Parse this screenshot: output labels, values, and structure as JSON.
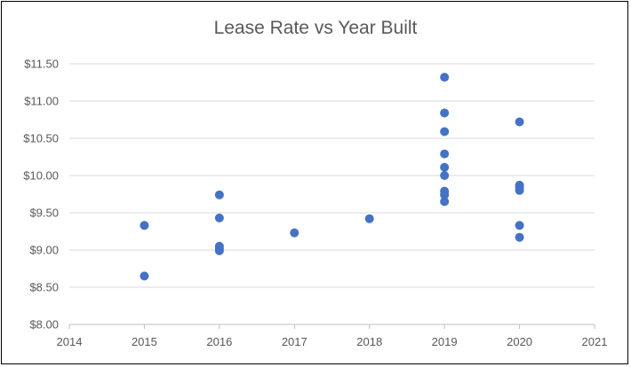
{
  "chart_data": {
    "type": "scatter",
    "title": "Lease Rate vs Year Built",
    "xlabel": "",
    "ylabel": "",
    "xlim": [
      2014,
      2021
    ],
    "ylim": [
      8.0,
      11.5
    ],
    "x_ticks": [
      "2014",
      "2015",
      "2016",
      "2017",
      "2018",
      "2019",
      "2020",
      "2021"
    ],
    "y_ticks": [
      "$8.00",
      "$8.50",
      "$9.00",
      "$9.50",
      "$10.00",
      "$10.50",
      "$11.00",
      "$11.50"
    ],
    "grid": "horizontal",
    "legend": "none",
    "marker_color": "#4472C4",
    "points": [
      {
        "x": 2015,
        "y": 9.33
      },
      {
        "x": 2015,
        "y": 8.65
      },
      {
        "x": 2016,
        "y": 9.74
      },
      {
        "x": 2016,
        "y": 9.43
      },
      {
        "x": 2016,
        "y": 9.05
      },
      {
        "x": 2016,
        "y": 9.02
      },
      {
        "x": 2016,
        "y": 8.99
      },
      {
        "x": 2017,
        "y": 9.23
      },
      {
        "x": 2018,
        "y": 9.42
      },
      {
        "x": 2019,
        "y": 11.32
      },
      {
        "x": 2019,
        "y": 10.84
      },
      {
        "x": 2019,
        "y": 10.59
      },
      {
        "x": 2019,
        "y": 10.29
      },
      {
        "x": 2019,
        "y": 10.11
      },
      {
        "x": 2019,
        "y": 10.0
      },
      {
        "x": 2019,
        "y": 9.79
      },
      {
        "x": 2019,
        "y": 9.74
      },
      {
        "x": 2019,
        "y": 9.65
      },
      {
        "x": 2020,
        "y": 10.72
      },
      {
        "x": 2020,
        "y": 9.87
      },
      {
        "x": 2020,
        "y": 9.84
      },
      {
        "x": 2020,
        "y": 9.8
      },
      {
        "x": 2020,
        "y": 9.33
      },
      {
        "x": 2020,
        "y": 9.17
      }
    ]
  }
}
